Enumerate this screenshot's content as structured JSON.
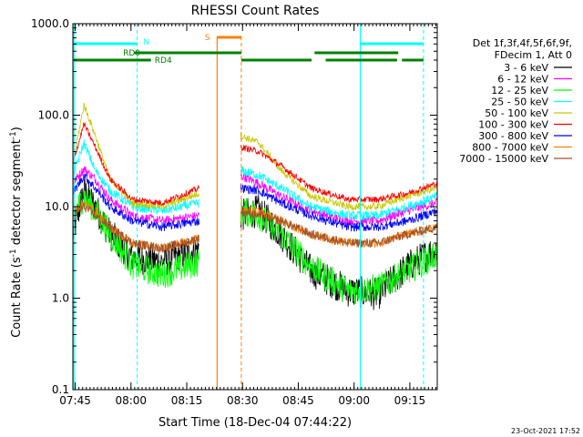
{
  "chart_data": {
    "type": "line",
    "title": "RHESSI Count Rates",
    "xlabel": "Start Time (18-Dec-04 07:44:22)",
    "ylabel_main": "Count Rate (s",
    "ylabel_sup1": "-1",
    "ylabel_mid": " detector segment",
    "ylabel_sup2": "-1",
    "ylabel_end": ")",
    "yscale": "log",
    "ylim": [
      0.1,
      1000
    ],
    "xlim_minutes": [
      0,
      98
    ],
    "y_ticks": [
      "0.1",
      "1.0",
      "10.0",
      "100.0",
      "1000.0"
    ],
    "x_ticks": [
      {
        "label": "07:45",
        "minute": 0.63
      },
      {
        "label": "08:00",
        "minute": 15.63
      },
      {
        "label": "08:15",
        "minute": 30.63
      },
      {
        "label": "08:30",
        "minute": 45.63
      },
      {
        "label": "08:45",
        "minute": 60.63
      },
      {
        "label": "09:00",
        "minute": 75.63
      },
      {
        "label": "09:15",
        "minute": 90.63
      }
    ],
    "legend_header": [
      "Det 1f,3f,4f,5f,6f,9f,",
      "FDecim 1, Att 0"
    ],
    "series": [
      {
        "name": "3 - 6 keV",
        "color": "#000000",
        "values": [
          5,
          15,
          10,
          5,
          2.8,
          2.5,
          3.5,
          null,
          8,
          9,
          5,
          2,
          1.2,
          1.1,
          2.2,
          3.5
        ]
      },
      {
        "name": "6 - 12 keV",
        "color": "#ff00ff",
        "values": [
          18,
          26,
          20,
          12,
          8,
          7,
          8,
          null,
          22,
          18,
          13,
          9,
          7,
          7,
          9,
          11
        ]
      },
      {
        "name": "12 - 25 keV",
        "color": "#00ff00",
        "values": [
          8,
          13,
          9,
          5,
          2.3,
          1.8,
          2.5,
          null,
          9,
          8,
          5,
          2.2,
          1.2,
          1.3,
          2,
          3
        ]
      },
      {
        "name": "25 - 50 keV",
        "color": "#00ffff",
        "values": [
          22,
          50,
          25,
          15,
          10,
          9,
          11,
          null,
          25,
          22,
          16,
          10,
          8,
          8,
          10,
          13
        ]
      },
      {
        "name": "50 - 100 keV",
        "color": "#c8c800",
        "values": [
          30,
          130,
          60,
          20,
          11,
          10,
          14,
          null,
          60,
          50,
          25,
          13,
          10,
          10,
          13,
          16
        ]
      },
      {
        "name": "100 - 300 keV",
        "color": "#ff0000",
        "values": [
          30,
          80,
          45,
          20,
          12,
          11,
          16,
          null,
          45,
          40,
          28,
          16,
          12,
          12,
          14,
          18
        ]
      },
      {
        "name": "300 - 800 keV",
        "color": "#0000ff",
        "values": [
          14,
          22,
          16,
          10,
          7,
          6,
          7,
          null,
          16,
          15,
          11,
          8,
          6,
          6,
          7,
          9
        ]
      },
      {
        "name": "800 - 7000 keV",
        "color": "#ff8000",
        "values": [
          9,
          11,
          9,
          6,
          4,
          3.5,
          4.5,
          null,
          9,
          9,
          7,
          5,
          4,
          4,
          5,
          6
        ]
      },
      {
        "name": "7000 - 15000 keV",
        "color": "#a0522d",
        "values": [
          8,
          10,
          8,
          6,
          4,
          3.5,
          4.5,
          null,
          9,
          8,
          7,
          5,
          4,
          4,
          5,
          6
        ]
      }
    ],
    "series_x_minutes": [
      0,
      3,
      6,
      10,
      16,
      24,
      34,
      40,
      45,
      50,
      56,
      64,
      74,
      82,
      90,
      98
    ],
    "annotations": {
      "N_label": "N",
      "S_label": "S",
      "RD0_label": "RD0",
      "RD4_label": "RD4"
    },
    "timestamp": "23-Oct-2021 17:52"
  }
}
